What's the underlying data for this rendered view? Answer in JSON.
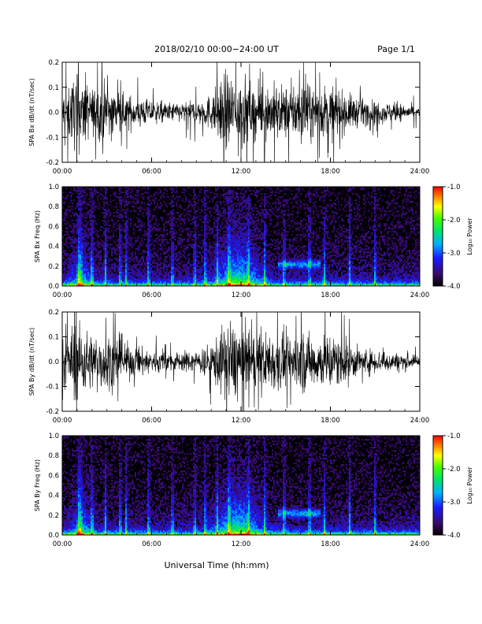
{
  "header": {
    "title": "2018/02/10   00:00−24:00 UT",
    "page": "Page 1/1"
  },
  "x_axis": {
    "label": "Universal Time (hh:mm)",
    "ticks": [
      "00:00",
      "06:00",
      "12:00",
      "18:00",
      "24:00"
    ],
    "range_hours": [
      0,
      24
    ]
  },
  "colorbar": {
    "label": "Log₁₀ Power",
    "ticks": [
      "-1.0",
      "-2.0",
      "-3.0",
      "-4.0"
    ],
    "range": [
      -4.0,
      -1.0
    ]
  },
  "colors": {
    "trace": "#000000",
    "background": "#000000"
  },
  "chart_data": [
    {
      "type": "line",
      "ylabel": "SPA Bx dB/dt (nT/sec)",
      "ylim": [
        -0.2,
        0.2
      ],
      "yticks": [
        "-0.2",
        "-0.1",
        "0.0",
        "0.1",
        "0.2"
      ],
      "x": [
        0,
        1,
        2,
        3,
        4,
        5,
        6,
        7,
        8,
        9,
        10,
        11,
        12,
        13,
        14,
        15,
        16,
        17,
        18,
        19,
        20,
        21,
        22,
        23,
        24
      ],
      "envelope": [
        0.1,
        0.2,
        0.12,
        0.15,
        0.09,
        0.08,
        0.06,
        0.05,
        0.05,
        0.06,
        0.09,
        0.2,
        0.2,
        0.12,
        0.15,
        0.13,
        0.16,
        0.12,
        0.14,
        0.1,
        0.07,
        0.06,
        0.05,
        0.04,
        0.03
      ]
    },
    {
      "type": "heatmap",
      "ylabel": "SPA Bx Freq (Hz)",
      "ylim": [
        0.0,
        1.0
      ],
      "yticks": [
        "0.0",
        "0.2",
        "0.4",
        "0.6",
        "0.8",
        "1.0"
      ],
      "x_hours": [
        0,
        24
      ],
      "zlim": [
        -4.0,
        -1.0
      ]
    },
    {
      "type": "line",
      "ylabel": "SPA By dB/dt (nT/sec)",
      "ylim": [
        -0.2,
        0.2
      ],
      "yticks": [
        "-0.2",
        "-0.1",
        "0.0",
        "0.1",
        "0.2"
      ],
      "x": [
        0,
        1,
        2,
        3,
        4,
        5,
        6,
        7,
        8,
        9,
        10,
        11,
        12,
        13,
        14,
        15,
        16,
        17,
        18,
        19,
        20,
        21,
        22,
        23,
        24
      ],
      "envelope": [
        0.1,
        0.2,
        0.14,
        0.15,
        0.1,
        0.08,
        0.06,
        0.05,
        0.05,
        0.06,
        0.09,
        0.2,
        0.2,
        0.12,
        0.16,
        0.14,
        0.16,
        0.13,
        0.15,
        0.11,
        0.07,
        0.06,
        0.05,
        0.04,
        0.03
      ]
    },
    {
      "type": "heatmap",
      "ylabel": "SPA By Freq (Hz)",
      "ylim": [
        0.0,
        1.0
      ],
      "yticks": [
        "0.0",
        "0.2",
        "0.4",
        "0.6",
        "0.8",
        "1.0"
      ],
      "x_hours": [
        0,
        24
      ],
      "zlim": [
        -4.0,
        -1.0
      ]
    }
  ]
}
